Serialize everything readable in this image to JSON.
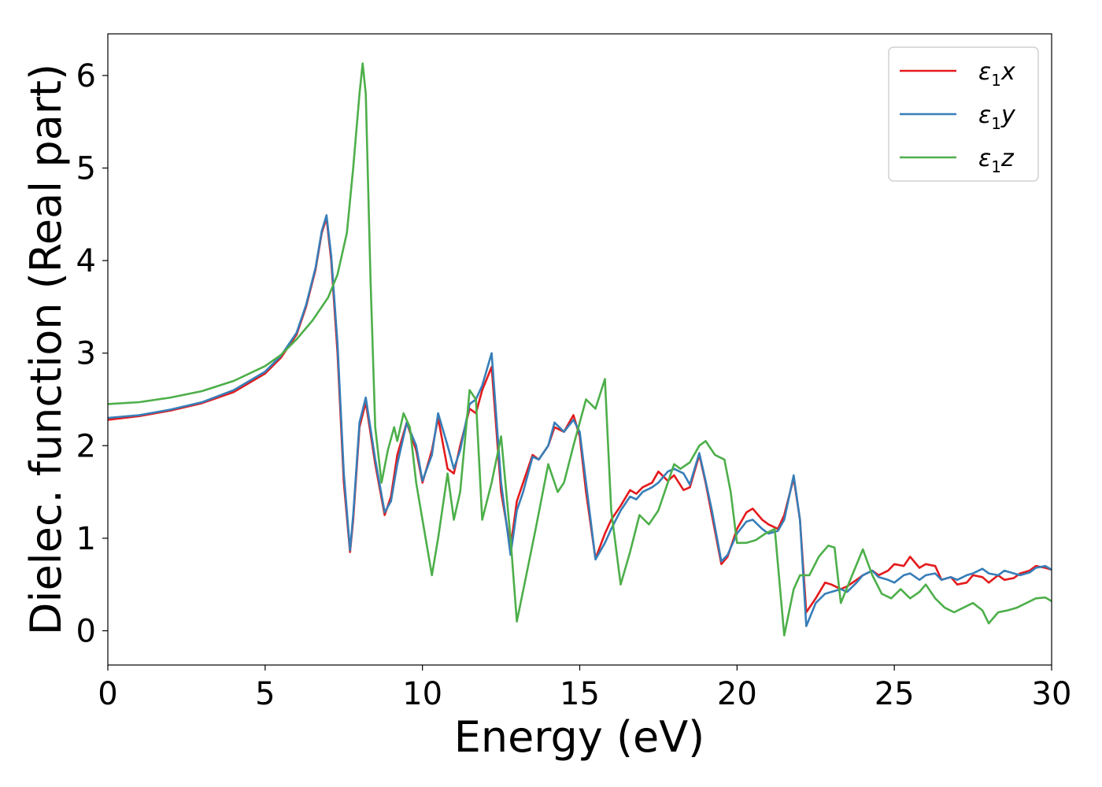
{
  "chart_data": {
    "type": "line",
    "xlabel": "Energy (eV)",
    "ylabel": "Dielec. function (Real part)",
    "xlim": [
      0,
      30
    ],
    "ylim": [
      -0.37,
      6.45
    ],
    "xticks": [
      0,
      5,
      10,
      15,
      20,
      25,
      30
    ],
    "yticks": [
      0,
      1,
      2,
      3,
      4,
      5,
      6
    ],
    "grid": false,
    "legend_position": "top-right",
    "series": [
      {
        "name": "x",
        "legend_symbol": "ε",
        "legend_subscript": "1",
        "color": "#e41a1c",
        "x": [
          0,
          1,
          2,
          3,
          4,
          5,
          5.5,
          6,
          6.3,
          6.6,
          6.8,
          6.95,
          7.1,
          7.3,
          7.5,
          7.7,
          7.8,
          8.0,
          8.2,
          8.5,
          8.8,
          9.0,
          9.2,
          9.5,
          9.8,
          10.0,
          10.3,
          10.5,
          10.8,
          11.0,
          11.2,
          11.5,
          11.7,
          11.9,
          12.2,
          12.5,
          12.8,
          13.0,
          13.2,
          13.5,
          13.7,
          14.0,
          14.2,
          14.5,
          14.8,
          15.0,
          15.2,
          15.5,
          15.8,
          16.0,
          16.3,
          16.6,
          16.8,
          17.0,
          17.3,
          17.5,
          17.8,
          18.0,
          18.3,
          18.5,
          18.8,
          19.0,
          19.2,
          19.5,
          19.7,
          20.0,
          20.3,
          20.5,
          20.8,
          21.0,
          21.3,
          21.5,
          21.8,
          22.0,
          22.2,
          22.5,
          22.8,
          23.0,
          23.3,
          23.5,
          23.8,
          24.0,
          24.3,
          24.5,
          24.8,
          25.0,
          25.3,
          25.5,
          25.8,
          26.0,
          26.3,
          26.5,
          26.8,
          27.0,
          27.3,
          27.5,
          27.8,
          28.0,
          28.3,
          28.5,
          28.8,
          29.0,
          29.3,
          29.5,
          29.8,
          30.0
        ],
        "y": [
          2.28,
          2.32,
          2.38,
          2.46,
          2.58,
          2.78,
          2.95,
          3.2,
          3.5,
          3.9,
          4.3,
          4.46,
          4.0,
          3.0,
          1.6,
          0.85,
          1.2,
          2.2,
          2.47,
          1.8,
          1.25,
          1.45,
          1.9,
          2.25,
          1.95,
          1.6,
          1.95,
          2.3,
          1.75,
          1.7,
          2.0,
          2.4,
          2.35,
          2.6,
          2.85,
          1.5,
          0.9,
          1.4,
          1.6,
          1.9,
          1.85,
          2.0,
          2.2,
          2.15,
          2.33,
          2.1,
          1.5,
          0.78,
          1.05,
          1.2,
          1.35,
          1.52,
          1.48,
          1.55,
          1.6,
          1.72,
          1.62,
          1.68,
          1.52,
          1.55,
          1.9,
          1.6,
          1.25,
          0.72,
          0.8,
          1.1,
          1.28,
          1.32,
          1.2,
          1.15,
          1.1,
          1.25,
          1.65,
          1.2,
          0.2,
          0.35,
          0.52,
          0.5,
          0.45,
          0.48,
          0.55,
          0.6,
          0.65,
          0.6,
          0.65,
          0.72,
          0.7,
          0.8,
          0.68,
          0.72,
          0.7,
          0.55,
          0.58,
          0.5,
          0.52,
          0.6,
          0.58,
          0.52,
          0.6,
          0.55,
          0.57,
          0.62,
          0.65,
          0.7,
          0.68,
          0.66
        ]
      },
      {
        "name": "y",
        "legend_symbol": "ε",
        "legend_subscript": "1",
        "color": "#377eb8",
        "x": [
          0,
          1,
          2,
          3,
          4,
          5,
          5.5,
          6,
          6.3,
          6.6,
          6.8,
          6.95,
          7.1,
          7.3,
          7.5,
          7.7,
          7.8,
          8.0,
          8.2,
          8.5,
          8.8,
          9.0,
          9.2,
          9.5,
          9.8,
          10.0,
          10.3,
          10.5,
          10.8,
          11.0,
          11.2,
          11.5,
          11.7,
          11.9,
          12.2,
          12.5,
          12.8,
          13.0,
          13.2,
          13.5,
          13.7,
          14.0,
          14.2,
          14.5,
          14.8,
          15.0,
          15.2,
          15.5,
          15.8,
          16.0,
          16.3,
          16.6,
          16.8,
          17.0,
          17.3,
          17.5,
          17.8,
          18.0,
          18.3,
          18.5,
          18.8,
          19.0,
          19.2,
          19.5,
          19.7,
          20.0,
          20.3,
          20.5,
          20.8,
          21.0,
          21.3,
          21.5,
          21.8,
          22.0,
          22.2,
          22.5,
          22.8,
          23.0,
          23.3,
          23.5,
          23.8,
          24.0,
          24.3,
          24.5,
          24.8,
          25.0,
          25.3,
          25.5,
          25.8,
          26.0,
          26.3,
          26.5,
          26.8,
          27.0,
          27.3,
          27.5,
          27.8,
          28.0,
          28.3,
          28.5,
          28.8,
          29.0,
          29.3,
          29.5,
          29.8,
          30.0
        ],
        "y": [
          2.3,
          2.33,
          2.39,
          2.47,
          2.6,
          2.8,
          2.97,
          3.22,
          3.52,
          3.92,
          4.32,
          4.49,
          4.05,
          3.1,
          1.7,
          0.87,
          1.25,
          2.25,
          2.52,
          1.85,
          1.28,
          1.4,
          1.8,
          2.25,
          2.0,
          1.62,
          1.9,
          2.35,
          2.0,
          1.75,
          1.95,
          2.45,
          2.5,
          2.65,
          3.0,
          1.6,
          0.82,
          1.3,
          1.5,
          1.88,
          1.85,
          2.0,
          2.25,
          2.15,
          2.28,
          2.15,
          1.6,
          0.77,
          0.95,
          1.1,
          1.3,
          1.45,
          1.42,
          1.5,
          1.55,
          1.6,
          1.72,
          1.75,
          1.7,
          1.58,
          1.92,
          1.62,
          1.3,
          0.75,
          0.82,
          1.05,
          1.18,
          1.2,
          1.1,
          1.05,
          1.08,
          1.2,
          1.68,
          1.2,
          0.05,
          0.3,
          0.4,
          0.42,
          0.45,
          0.42,
          0.52,
          0.6,
          0.65,
          0.58,
          0.55,
          0.52,
          0.6,
          0.62,
          0.55,
          0.6,
          0.62,
          0.55,
          0.58,
          0.55,
          0.6,
          0.62,
          0.67,
          0.62,
          0.6,
          0.65,
          0.62,
          0.6,
          0.63,
          0.68,
          0.7,
          0.66
        ]
      },
      {
        "name": "z",
        "legend_symbol": "ε",
        "legend_subscript": "1",
        "color": "#4daf4a",
        "x": [
          0,
          1,
          2,
          3,
          4,
          5,
          5.5,
          6,
          6.5,
          7.0,
          7.3,
          7.6,
          7.8,
          8.0,
          8.1,
          8.2,
          8.35,
          8.5,
          8.7,
          8.9,
          9.1,
          9.2,
          9.4,
          9.6,
          9.8,
          10.0,
          10.3,
          10.5,
          10.8,
          11.0,
          11.2,
          11.5,
          11.7,
          11.9,
          12.2,
          12.5,
          12.8,
          13.0,
          13.3,
          13.6,
          14.0,
          14.3,
          14.5,
          14.8,
          15.2,
          15.5,
          15.8,
          16.0,
          16.3,
          16.6,
          16.9,
          17.2,
          17.5,
          17.8,
          18.0,
          18.2,
          18.5,
          18.8,
          19.0,
          19.3,
          19.6,
          19.8,
          20.0,
          20.3,
          20.6,
          20.9,
          21.2,
          21.5,
          21.8,
          22.0,
          22.3,
          22.6,
          22.9,
          23.1,
          23.3,
          23.6,
          24.0,
          24.3,
          24.6,
          24.9,
          25.2,
          25.5,
          25.8,
          26.0,
          26.3,
          26.6,
          26.9,
          27.2,
          27.5,
          27.8,
          28.0,
          28.3,
          28.6,
          28.9,
          29.2,
          29.5,
          29.8,
          30.0
        ],
        "y": [
          2.45,
          2.47,
          2.52,
          2.59,
          2.7,
          2.86,
          2.98,
          3.15,
          3.35,
          3.6,
          3.85,
          4.3,
          5.0,
          5.8,
          6.13,
          5.8,
          3.8,
          2.2,
          1.6,
          1.95,
          2.2,
          2.05,
          2.35,
          2.2,
          1.6,
          1.2,
          0.6,
          1.0,
          1.7,
          1.2,
          1.5,
          2.6,
          2.5,
          1.2,
          1.6,
          2.1,
          1.0,
          0.1,
          0.6,
          1.1,
          1.8,
          1.5,
          1.6,
          2.0,
          2.5,
          2.4,
          2.72,
          1.3,
          0.5,
          0.85,
          1.25,
          1.15,
          1.3,
          1.6,
          1.8,
          1.75,
          1.82,
          2.0,
          2.05,
          1.9,
          1.85,
          1.5,
          0.95,
          0.95,
          0.98,
          1.05,
          1.1,
          -0.05,
          0.45,
          0.6,
          0.6,
          0.8,
          0.92,
          0.9,
          0.3,
          0.55,
          0.88,
          0.6,
          0.4,
          0.35,
          0.45,
          0.35,
          0.42,
          0.5,
          0.35,
          0.25,
          0.2,
          0.25,
          0.3,
          0.22,
          0.08,
          0.2,
          0.22,
          0.25,
          0.3,
          0.35,
          0.36,
          0.32
        ]
      }
    ]
  }
}
